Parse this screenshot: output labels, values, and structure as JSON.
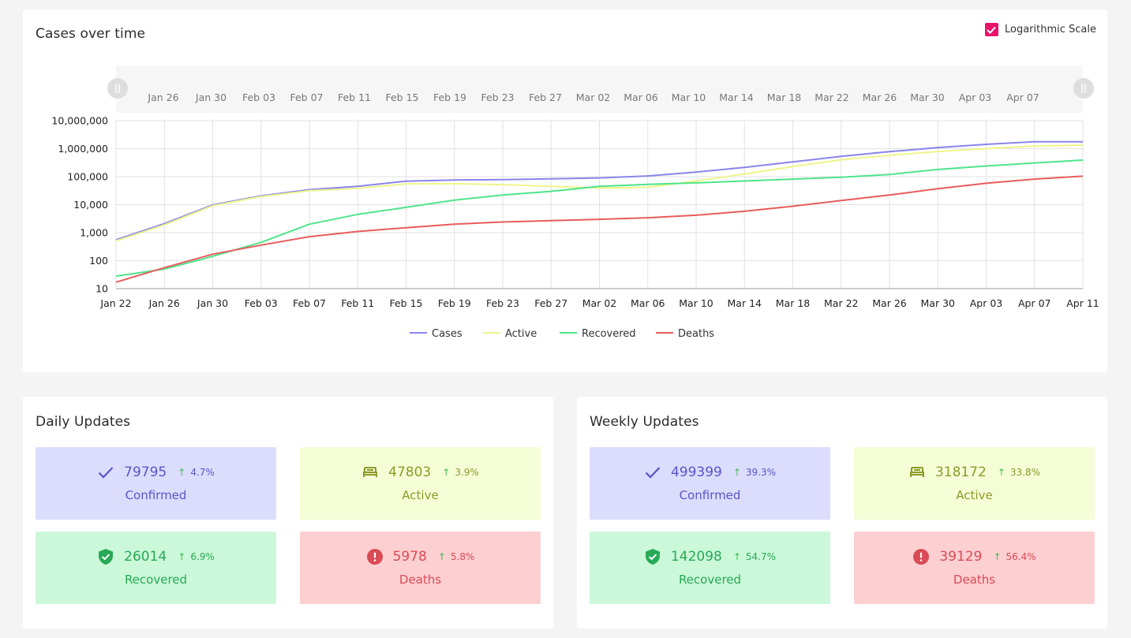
{
  "chart_card": {
    "title": "Cases over time",
    "log_toggle": {
      "label": "Logarithmic Scale",
      "checked": true,
      "color": "#e8126a"
    },
    "navigator_labels": [
      "Jan 26",
      "Jan 30",
      "Feb 03",
      "Feb 07",
      "Feb 11",
      "Feb 15",
      "Feb 19",
      "Feb 23",
      "Feb 27",
      "Mar 02",
      "Mar 06",
      "Mar 10",
      "Mar 14",
      "Mar 18",
      "Mar 22",
      "Mar 26",
      "Mar 30",
      "Apr 03",
      "Apr 07"
    ]
  },
  "chart_data": {
    "type": "line",
    "title": "Cases over time",
    "y_scale": "log",
    "ylim": [
      10,
      10000000
    ],
    "y_ticks": [
      "10,000,000",
      "1,000,000",
      "100,000",
      "10,000",
      "1,000",
      "100",
      "10"
    ],
    "x_ticks": [
      "Jan 22",
      "Jan 26",
      "Jan 30",
      "Feb 03",
      "Feb 07",
      "Feb 11",
      "Feb 15",
      "Feb 19",
      "Feb 23",
      "Feb 27",
      "Mar 02",
      "Mar 06",
      "Mar 10",
      "Mar 14",
      "Mar 18",
      "Mar 22",
      "Mar 26",
      "Mar 30",
      "Apr 03",
      "Apr 07",
      "Apr 11"
    ],
    "x": [
      "Jan 22",
      "Jan 26",
      "Jan 30",
      "Feb 03",
      "Feb 07",
      "Feb 11",
      "Feb 15",
      "Feb 19",
      "Feb 23",
      "Feb 27",
      "Mar 02",
      "Mar 06",
      "Mar 10",
      "Mar 14",
      "Mar 18",
      "Mar 22",
      "Mar 26",
      "Mar 30",
      "Apr 03",
      "Apr 07",
      "Apr 11"
    ],
    "grid": true,
    "legend": "bottom-center",
    "series": [
      {
        "name": "Cases",
        "color": "#8a84ea",
        "values": [
          555,
          2100,
          9800,
          20600,
          34400,
          45200,
          69000,
          75600,
          78900,
          83400,
          90300,
          105800,
          145500,
          214900,
          336000,
          530000,
          784000,
          1095000,
          1430000,
          1760000,
          1760000
        ]
      },
      {
        "name": "Active",
        "color": "#eef58a",
        "values": [
          510,
          1900,
          9200,
          19500,
          31500,
          38000,
          55500,
          56000,
          52000,
          45000,
          39000,
          42000,
          70000,
          125000,
          230000,
          400000,
          580000,
          790000,
          1000000,
          1250000,
          1340000
        ]
      },
      {
        "name": "Recovered",
        "color": "#4fe48a",
        "values": [
          28,
          50,
          143,
          450,
          2000,
          4500,
          8000,
          14500,
          22000,
          30000,
          45000,
          53000,
          60000,
          70000,
          82000,
          95000,
          120000,
          180000,
          240000,
          310000,
          390000
        ]
      },
      {
        "name": "Deaths",
        "color": "#e85c5c",
        "values": [
          17,
          56,
          170,
          360,
          720,
          1100,
          1500,
          2000,
          2400,
          2700,
          3000,
          3400,
          4200,
          5800,
          8800,
          14000,
          22000,
          37000,
          58000,
          82000,
          104000
        ]
      }
    ]
  },
  "daily": {
    "title": "Daily Updates",
    "tiles": [
      {
        "icon": "check-icon",
        "value": "79795",
        "change": "4.7%",
        "label": "Confirmed"
      },
      {
        "icon": "bed-icon",
        "value": "47803",
        "change": "3.9%",
        "label": "Active"
      },
      {
        "icon": "shield-check-icon",
        "value": "26014",
        "change": "6.9%",
        "label": "Recovered"
      },
      {
        "icon": "alert-circle-icon",
        "value": "5978",
        "change": "5.8%",
        "label": "Deaths"
      }
    ]
  },
  "weekly": {
    "title": "Weekly Updates",
    "tiles": [
      {
        "icon": "check-icon",
        "value": "499399",
        "change": "39.3%",
        "label": "Confirmed"
      },
      {
        "icon": "bed-icon",
        "value": "318172",
        "change": "33.8%",
        "label": "Active"
      },
      {
        "icon": "shield-check-icon",
        "value": "142098",
        "change": "54.7%",
        "label": "Recovered"
      },
      {
        "icon": "alert-circle-icon",
        "value": "39129",
        "change": "56.4%",
        "label": "Deaths"
      }
    ]
  }
}
